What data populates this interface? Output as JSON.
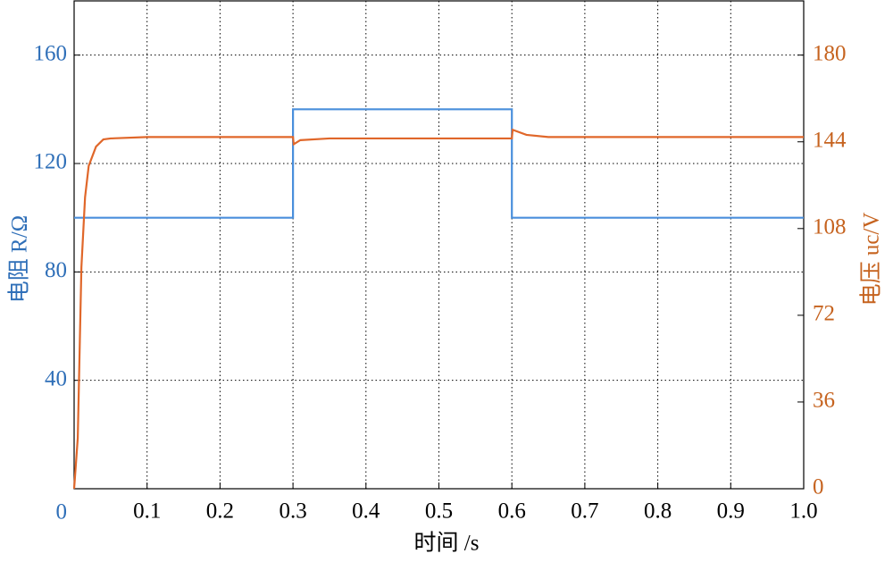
{
  "chart_data": {
    "type": "line",
    "xlabel": "时间 /s",
    "ylabel": "电阻 R/Ω",
    "y2label": "电压 uc/V",
    "xlim": [
      0,
      1
    ],
    "xticks": [
      0.1,
      0.2,
      0.3,
      0.4,
      0.5,
      0.6,
      0.7,
      0.8,
      0.9,
      {
        "value": 1,
        "label": "1.0"
      }
    ],
    "ylim": [
      0,
      180
    ],
    "yticks": [
      0,
      40,
      80,
      120,
      160
    ],
    "y2lim": [
      0,
      202.5
    ],
    "y2ticks": [
      0,
      36,
      72,
      108,
      144,
      180
    ],
    "grid": true,
    "series": [
      {
        "name": "电阻",
        "color": "#4a8fdc",
        "x": [
          0,
          0.3,
          0.3,
          0.6,
          0.6,
          1.0
        ],
        "values": [
          100,
          100,
          140,
          140,
          100,
          100
        ]
      },
      {
        "name": "电压",
        "color": "#e0672a",
        "axis": "y2",
        "x": [
          0,
          0.005,
          0.01,
          0.015,
          0.02,
          0.03,
          0.04,
          0.05,
          0.1,
          0.3,
          0.301,
          0.31,
          0.35,
          0.6,
          0.601,
          0.62,
          0.65,
          1.0
        ],
        "values": [
          0,
          21,
          92,
          121,
          134,
          142,
          145,
          145.4,
          146,
          146,
          143,
          144.7,
          145.4,
          145.4,
          149,
          146.9,
          146,
          146
        ]
      }
    ]
  }
}
